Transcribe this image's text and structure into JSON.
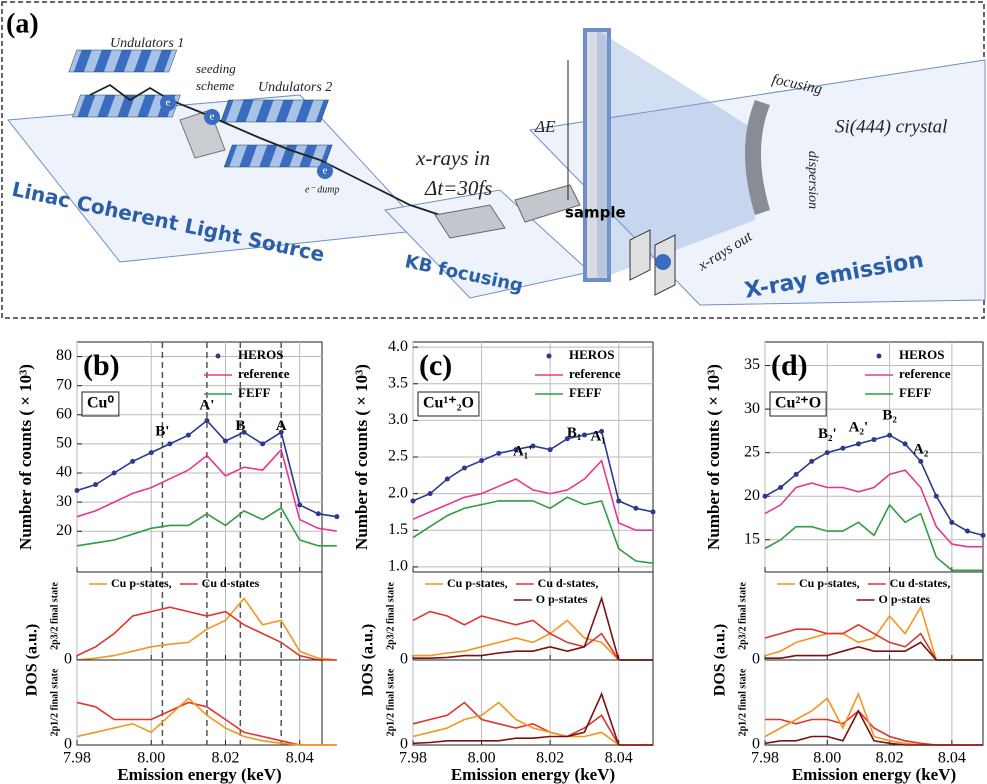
{
  "diagram": {
    "label": "(a)",
    "undulators_1": "Undulators 1",
    "seeding": "seeding",
    "scheme": "scheme",
    "undulators_2": "Undulators 2",
    "electrons": [
      "e",
      "e",
      "e"
    ],
    "dump": "e⁻ dump",
    "lcls": "Linac Coherent Light Source",
    "xrays_in": "x-rays in",
    "dt": "Δt=30fs",
    "kb": "KB focusing",
    "sample": "sample",
    "delta_e": "ΔE",
    "focusing": "focusing",
    "crystal": "Si(444) crystal",
    "dispersion": "dispersion",
    "xrays_out": "x-rays out",
    "emission": "X-ray emission"
  },
  "chart_data": [
    {
      "type": "line",
      "panel_label": "(b)",
      "sample": "Cu⁰",
      "ylabel": "Number of counts ( × 10³)",
      "x": [
        7.98,
        7.985,
        7.99,
        7.995,
        8.0,
        8.005,
        8.01,
        8.015,
        8.02,
        8.025,
        8.03,
        8.035,
        8.04,
        8.045,
        8.05
      ],
      "xlim": [
        7.98,
        8.046
      ],
      "xticks": [
        7.98,
        8.0,
        8.02,
        8.04
      ],
      "xtick_labels": false,
      "ylim": [
        6,
        85
      ],
      "yticks": [
        20,
        30,
        40,
        50,
        60,
        70,
        80
      ],
      "grid": true,
      "legend": "upper right",
      "series": [
        {
          "name": "HEROS",
          "color": "#2b3990",
          "markers": true,
          "values": [
            34,
            36,
            40,
            44,
            47,
            50,
            53,
            58,
            51,
            54,
            50,
            54,
            29,
            26,
            25
          ]
        },
        {
          "name": "reference",
          "color": "#e8368f",
          "values": [
            25,
            27,
            30,
            33,
            35,
            38,
            41,
            46,
            39,
            42,
            41,
            48,
            24,
            21,
            20
          ]
        },
        {
          "name": "FEFF",
          "color": "#2e9e3e",
          "values": [
            15,
            16,
            17,
            19,
            21,
            22,
            22,
            26,
            22,
            27,
            24,
            28,
            17,
            15,
            15
          ]
        }
      ],
      "annotations": [
        {
          "text": "B'",
          "x": 8.003,
          "y": 54
        },
        {
          "text": "A'",
          "x": 8.015,
          "y": 63
        },
        {
          "text": "B",
          "x": 8.024,
          "y": 56
        },
        {
          "text": "A",
          "x": 8.035,
          "y": 56
        }
      ],
      "vlines": [
        8.003,
        8.015,
        8.024,
        8.035
      ]
    },
    {
      "type": "line",
      "group_label": "DOS (a.u.)",
      "ylabel": "2p3/2 final state",
      "x": [
        7.98,
        7.985,
        7.99,
        7.995,
        8.0,
        8.005,
        8.01,
        8.015,
        8.02,
        8.025,
        8.03,
        8.035,
        8.04,
        8.045,
        8.05
      ],
      "xlim": [
        7.98,
        8.046
      ],
      "xticks": [
        7.98,
        8.0,
        8.02,
        8.04
      ],
      "xtick_labels": false,
      "ylim": [
        0,
        1
      ],
      "yticks": [
        0
      ],
      "grid": "x",
      "legend": "top",
      "series": [
        {
          "name": "Cu p-states,",
          "color": "#f7941d",
          "values": [
            0,
            0.02,
            0.05,
            0.1,
            0.15,
            0.18,
            0.2,
            0.35,
            0.45,
            0.7,
            0.4,
            0.45,
            0.1,
            0.02,
            0
          ]
        },
        {
          "name": "Cu d-states",
          "color": "#e0352b",
          "values": [
            0.05,
            0.15,
            0.3,
            0.5,
            0.55,
            0.6,
            0.55,
            0.5,
            0.55,
            0.4,
            0.3,
            0.2,
            0.05,
            0,
            0
          ]
        }
      ],
      "vlines": [
        8.003,
        8.015,
        8.024,
        8.035
      ]
    },
    {
      "type": "line",
      "ylabel": "2p1/2 final state",
      "xlabel": "Emission energy (keV)",
      "x": [
        7.98,
        7.985,
        7.99,
        7.995,
        8.0,
        8.005,
        8.01,
        8.015,
        8.02,
        8.025,
        8.03,
        8.035,
        8.04,
        8.045,
        8.05
      ],
      "xlim": [
        7.98,
        8.046
      ],
      "xticks": [
        7.98,
        {
          "value": 8.0,
          "label": "8.00"
        },
        8.02,
        8.04
      ],
      "ylim": [
        0,
        1
      ],
      "yticks": [
        0
      ],
      "grid": "x",
      "series": [
        {
          "color": "#e0352b",
          "values": [
            0.5,
            0.45,
            0.3,
            0.3,
            0.3,
            0.4,
            0.5,
            0.45,
            0.3,
            0.15,
            0.1,
            0.05,
            0,
            0,
            0
          ]
        },
        {
          "color": "#f7941d",
          "values": [
            0.1,
            0.15,
            0.2,
            0.25,
            0.15,
            0.35,
            0.55,
            0.35,
            0.2,
            0.1,
            0.05,
            0.02,
            0,
            0,
            0
          ]
        }
      ],
      "vlines": [
        8.003,
        8.015,
        8.024,
        8.035
      ]
    },
    {
      "type": "line",
      "panel_label": "(c)",
      "sample": "Cu¹⁺₂O",
      "ylabel": "Number of counts ( × 10³)",
      "x": [
        7.98,
        7.985,
        7.99,
        7.995,
        8.0,
        8.005,
        8.01,
        8.015,
        8.02,
        8.025,
        8.03,
        8.035,
        8.04,
        8.045,
        8.05
      ],
      "xlim": [
        7.98,
        8.05
      ],
      "xticks": [
        7.98,
        8.0,
        8.02,
        8.04
      ],
      "xtick_labels": false,
      "ylim": [
        0.93,
        4.07
      ],
      "yticks": [
        {
          "value": 1,
          "label": "1.0"
        },
        1.5,
        {
          "value": 2,
          "label": "2.0"
        },
        2.5,
        {
          "value": 3,
          "label": "3.0"
        },
        3.5,
        {
          "value": 4,
          "label": "4.0"
        }
      ],
      "grid": true,
      "legend": "upper right",
      "series": [
        {
          "name": "HEROS",
          "color": "#2b3990",
          "markers": true,
          "values": [
            1.9,
            2.0,
            2.2,
            2.35,
            2.45,
            2.55,
            2.6,
            2.65,
            2.6,
            2.75,
            2.8,
            2.85,
            1.9,
            1.8,
            1.75
          ]
        },
        {
          "name": "reference",
          "color": "#e8368f",
          "values": [
            1.65,
            1.75,
            1.85,
            1.95,
            2.0,
            2.1,
            2.2,
            2.05,
            2.0,
            2.05,
            2.2,
            2.45,
            1.6,
            1.5,
            1.5
          ]
        },
        {
          "name": "FEFF",
          "color": "#2e9e3e",
          "values": [
            1.4,
            1.55,
            1.7,
            1.8,
            1.85,
            1.9,
            1.9,
            1.9,
            1.8,
            1.95,
            1.85,
            1.9,
            1.25,
            1.08,
            1.05
          ]
        }
      ],
      "annotations": [
        {
          "text": "A₁'",
          "x": 8.012,
          "y": 2.57
        },
        {
          "text": "B₁",
          "x": 8.027,
          "y": 2.82
        },
        {
          "text": "A₁",
          "x": 8.034,
          "y": 2.77
        }
      ]
    },
    {
      "type": "line",
      "group_label": "DOS (a.u.)",
      "ylabel": "2p3/2 final state",
      "x": [
        7.98,
        7.985,
        7.99,
        7.995,
        8.0,
        8.005,
        8.01,
        8.015,
        8.02,
        8.025,
        8.03,
        8.035,
        8.04,
        8.045,
        8.05
      ],
      "xlim": [
        7.98,
        8.05
      ],
      "xticks": [
        7.98,
        8.0,
        8.02,
        8.04
      ],
      "xtick_labels": false,
      "ylim": [
        0,
        1
      ],
      "yticks": [
        0
      ],
      "grid": "x",
      "legend": "top",
      "series": [
        {
          "name": "Cu p-states,",
          "color": "#f7941d",
          "values": [
            0.05,
            0.05,
            0.08,
            0.1,
            0.15,
            0.2,
            0.25,
            0.2,
            0.3,
            0.45,
            0.25,
            0.2,
            0,
            0,
            0
          ]
        },
        {
          "name": "Cu d-states,",
          "color": "#e0352b",
          "values": [
            0.45,
            0.55,
            0.5,
            0.4,
            0.5,
            0.45,
            0.4,
            0.45,
            0.3,
            0.2,
            0.15,
            0.3,
            0,
            0,
            0
          ]
        },
        {
          "name": "O p-states",
          "color": "#7b1113",
          "values": [
            0.02,
            0.02,
            0.03,
            0.05,
            0.05,
            0.08,
            0.1,
            0.1,
            0.15,
            0.1,
            0.15,
            0.7,
            0,
            0,
            0
          ]
        }
      ]
    },
    {
      "type": "line",
      "ylabel": "2p1/2 final state",
      "xlabel": "Emission energy (keV)",
      "x": [
        7.98,
        7.985,
        7.99,
        7.995,
        8.0,
        8.005,
        8.01,
        8.015,
        8.02,
        8.025,
        8.03,
        8.035,
        8.04,
        8.045,
        8.05
      ],
      "xlim": [
        7.98,
        8.05
      ],
      "xticks": [
        7.98,
        {
          "value": 8.0,
          "label": "8.00"
        },
        8.02,
        8.04
      ],
      "ylim": [
        0,
        1
      ],
      "yticks": [
        0
      ],
      "grid": "x",
      "series": [
        {
          "color": "#e0352b",
          "values": [
            0.25,
            0.3,
            0.35,
            0.5,
            0.3,
            0.25,
            0.2,
            0.25,
            0.15,
            0.1,
            0.2,
            0.35,
            0,
            0,
            0
          ]
        },
        {
          "color": "#f7941d",
          "values": [
            0.1,
            0.15,
            0.2,
            0.3,
            0.35,
            0.5,
            0.3,
            0.2,
            0.15,
            0.1,
            0.1,
            0.15,
            0,
            0,
            0
          ]
        },
        {
          "color": "#7b1113",
          "values": [
            0.02,
            0.03,
            0.05,
            0.05,
            0.05,
            0.05,
            0.08,
            0.08,
            0.1,
            0.1,
            0.15,
            0.6,
            0,
            0,
            0
          ]
        }
      ]
    },
    {
      "type": "line",
      "panel_label": "(d)",
      "sample": "Cu²⁺O",
      "ylabel": "Number of counts ( × 10³)",
      "x": [
        7.98,
        7.985,
        7.99,
        7.995,
        8.0,
        8.005,
        8.01,
        8.015,
        8.02,
        8.025,
        8.03,
        8.035,
        8.04,
        8.045,
        8.05
      ],
      "xlim": [
        7.98,
        8.05
      ],
      "xticks": [
        7.98,
        8.0,
        8.02,
        8.04
      ],
      "xtick_labels": false,
      "ylim": [
        11.3,
        37.7
      ],
      "yticks": [
        15,
        20,
        25,
        30,
        35
      ],
      "grid": true,
      "legend": "upper right",
      "series": [
        {
          "name": "HEROS",
          "color": "#2b3990",
          "markers": true,
          "values": [
            20,
            21,
            22.5,
            24,
            25,
            25.5,
            26,
            26.5,
            27,
            26,
            24,
            20,
            17,
            16,
            15.5
          ]
        },
        {
          "name": "reference",
          "color": "#e8368f",
          "values": [
            18,
            19,
            21,
            21.5,
            21,
            21,
            20.5,
            21,
            22.5,
            23,
            21,
            16.5,
            14.5,
            14.2,
            14.2
          ]
        },
        {
          "name": "FEFF",
          "color": "#2e9e3e",
          "values": [
            14,
            15,
            16.5,
            16.5,
            16,
            16,
            17,
            15.5,
            19,
            17,
            18,
            13,
            11.5,
            11.5,
            11.5
          ]
        }
      ],
      "annotations": [
        {
          "text": "B₂'",
          "x": 8.0,
          "y": 27.1
        },
        {
          "text": "A₂'",
          "x": 8.01,
          "y": 27.8
        },
        {
          "text": "B₂",
          "x": 8.02,
          "y": 29.2
        },
        {
          "text": "A₂",
          "x": 8.03,
          "y": 25.3
        }
      ]
    },
    {
      "type": "line",
      "group_label": "DOS (a.u.)",
      "ylabel": "2p3/2 final state",
      "x": [
        7.98,
        7.985,
        7.99,
        7.995,
        8.0,
        8.005,
        8.01,
        8.015,
        8.02,
        8.025,
        8.03,
        8.035,
        8.04,
        8.045,
        8.05
      ],
      "xlim": [
        7.98,
        8.05
      ],
      "xticks": [
        7.98,
        8.0,
        8.02,
        8.04
      ],
      "xtick_labels": false,
      "ylim": [
        0,
        1
      ],
      "yticks": [
        0
      ],
      "grid": "x",
      "legend": "top",
      "series": [
        {
          "name": "Cu p-states,",
          "color": "#f7941d",
          "values": [
            0.05,
            0.1,
            0.2,
            0.25,
            0.3,
            0.3,
            0.2,
            0.25,
            0.5,
            0.3,
            0.6,
            0,
            0,
            0,
            0
          ]
        },
        {
          "name": "Cu d-states,",
          "color": "#e0352b",
          "values": [
            0.25,
            0.3,
            0.35,
            0.35,
            0.3,
            0.3,
            0.4,
            0.3,
            0.2,
            0.15,
            0.3,
            0,
            0,
            0,
            0
          ]
        },
        {
          "name": "O p-states",
          "color": "#7b1113",
          "values": [
            0.02,
            0.02,
            0.05,
            0.05,
            0.05,
            0.1,
            0.15,
            0.1,
            0.1,
            0.1,
            0.2,
            0,
            0,
            0,
            0
          ]
        }
      ]
    },
    {
      "type": "line",
      "ylabel": "2p1/2 final state",
      "xlabel": "Emission energy (keV)",
      "x": [
        7.98,
        7.985,
        7.99,
        7.995,
        8.0,
        8.005,
        8.01,
        8.015,
        8.02,
        8.025,
        8.03,
        8.035,
        8.04,
        8.045,
        8.05
      ],
      "xlim": [
        7.98,
        8.05
      ],
      "xticks": [
        7.98,
        {
          "value": 8.0,
          "label": "8.00"
        },
        8.02,
        8.04
      ],
      "ylim": [
        0,
        1
      ],
      "yticks": [
        0
      ],
      "grid": "x",
      "series": [
        {
          "color": "#e0352b",
          "values": [
            0.3,
            0.3,
            0.25,
            0.3,
            0.3,
            0.25,
            0.4,
            0.2,
            0.1,
            0.05,
            0.02,
            0,
            0,
            0,
            0
          ]
        },
        {
          "color": "#f7941d",
          "values": [
            0.1,
            0.2,
            0.3,
            0.4,
            0.55,
            0.2,
            0.6,
            0.1,
            0.05,
            0.02,
            0,
            0,
            0,
            0,
            0
          ]
        },
        {
          "color": "#7b1113",
          "values": [
            0.02,
            0.05,
            0.05,
            0.1,
            0.1,
            0.05,
            0.4,
            0.05,
            0.02,
            0,
            0,
            0,
            0,
            0,
            0
          ]
        }
      ]
    }
  ]
}
